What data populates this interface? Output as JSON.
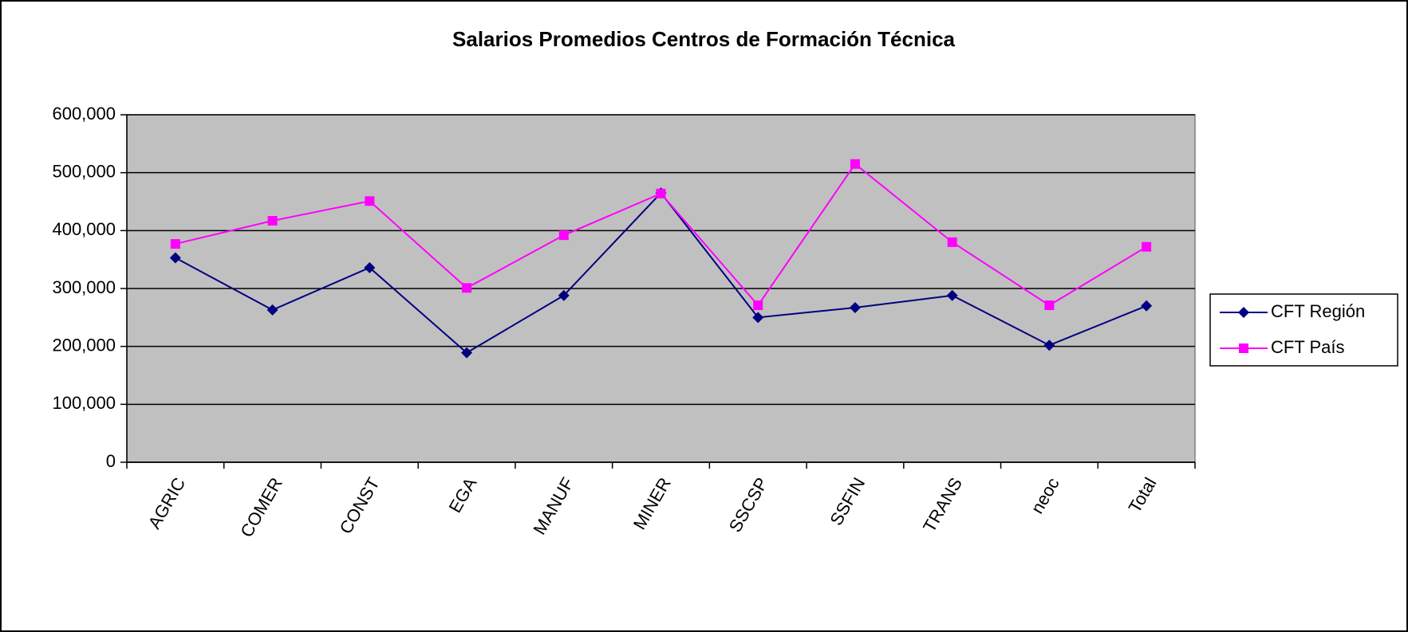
{
  "chart_data": {
    "type": "line",
    "title": "Salarios  Promedios Centros de Formación Técnica",
    "categories": [
      "AGRIC",
      "COMER",
      "CONST",
      "EGA",
      "MANUF",
      "MINER",
      "SSCSP",
      "SSFIN",
      "TRANS",
      "neoc",
      "Total"
    ],
    "series": [
      {
        "name": "CFT Región",
        "color": "#000080",
        "marker": "diamond",
        "values": [
          353000,
          263000,
          336000,
          189000,
          288000,
          465000,
          250000,
          267000,
          288000,
          202000,
          270000
        ]
      },
      {
        "name": "CFT País",
        "color": "#ff00ff",
        "marker": "square",
        "values": [
          377000,
          417000,
          451000,
          301000,
          392000,
          464000,
          271000,
          515000,
          380000,
          271000,
          372000
        ]
      }
    ],
    "ylim": [
      0,
      600000
    ],
    "yticks": [
      0,
      {
        "value": 100000,
        "label": "100,000"
      },
      {
        "value": 200000,
        "label": "200,000"
      },
      {
        "value": 300000,
        "label": "300,000"
      },
      {
        "value": 400000,
        "label": "400,000"
      },
      {
        "value": 500000,
        "label": "500,000"
      },
      {
        "value": 600000,
        "label": "600,000"
      }
    ],
    "grid": true,
    "legend": "right",
    "plot_background": "#c0c0c0"
  }
}
